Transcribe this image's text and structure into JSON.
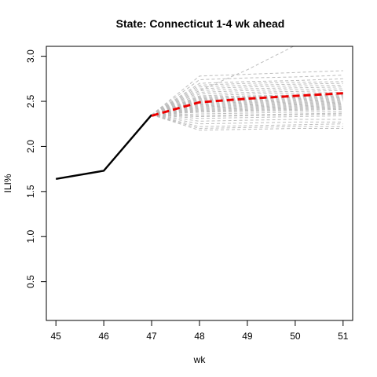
{
  "chart_data": {
    "type": "line",
    "title": "State: Connecticut 1-4 wk ahead",
    "xlabel": "wk",
    "ylabel": "ILI%",
    "xlim": [
      44.8,
      51.2
    ],
    "ylim": [
      0.07,
      3.11
    ],
    "xticks": [
      45,
      46,
      47,
      48,
      49,
      50,
      51
    ],
    "yticks": [
      0.5,
      1.0,
      1.5,
      2.0,
      2.5,
      3.0
    ],
    "ytick_labels": [
      "0.5",
      "1.0",
      "1.5",
      "2.0",
      "2.5",
      "3.0"
    ],
    "grid": false,
    "legend": "none",
    "colors": {
      "observed": "#000000",
      "forecast_mean": "#ee0000",
      "ensemble": "#bdbdbd"
    },
    "observed": {
      "x": [
        45,
        46,
        47
      ],
      "y": [
        1.64,
        1.73,
        2.35
      ]
    },
    "forecast_mean": {
      "x": [
        47,
        48,
        49,
        50,
        51
      ],
      "y": [
        2.34,
        2.49,
        2.53,
        2.56,
        2.59
      ]
    },
    "ensemble_x": [
      47,
      48,
      49,
      50,
      51
    ],
    "ensemble": [
      [
        2.35,
        2.62,
        2.85,
        3.12,
        3.3
      ],
      [
        2.35,
        2.78,
        2.8,
        2.82,
        2.84
      ],
      [
        2.35,
        2.74,
        2.76,
        2.77,
        2.79
      ],
      [
        2.35,
        2.7,
        2.72,
        2.73,
        2.75
      ],
      [
        2.35,
        2.68,
        2.7,
        2.71,
        2.72
      ],
      [
        2.35,
        2.66,
        2.68,
        2.69,
        2.7
      ],
      [
        2.35,
        2.64,
        2.66,
        2.67,
        2.68
      ],
      [
        2.35,
        2.62,
        2.64,
        2.65,
        2.66
      ],
      [
        2.35,
        2.6,
        2.62,
        2.63,
        2.64
      ],
      [
        2.35,
        2.58,
        2.6,
        2.61,
        2.62
      ],
      [
        2.35,
        2.56,
        2.58,
        2.59,
        2.6
      ],
      [
        2.35,
        2.55,
        2.56,
        2.57,
        2.58
      ],
      [
        2.35,
        2.54,
        2.55,
        2.56,
        2.57
      ],
      [
        2.35,
        2.53,
        2.54,
        2.55,
        2.56
      ],
      [
        2.35,
        2.52,
        2.53,
        2.54,
        2.55
      ],
      [
        2.35,
        2.51,
        2.52,
        2.53,
        2.54
      ],
      [
        2.35,
        2.5,
        2.51,
        2.52,
        2.53
      ],
      [
        2.35,
        2.49,
        2.5,
        2.51,
        2.52
      ],
      [
        2.35,
        2.48,
        2.49,
        2.5,
        2.51
      ],
      [
        2.35,
        2.47,
        2.48,
        2.49,
        2.5
      ],
      [
        2.35,
        2.46,
        2.47,
        2.48,
        2.49
      ],
      [
        2.35,
        2.45,
        2.46,
        2.47,
        2.48
      ],
      [
        2.35,
        2.44,
        2.45,
        2.46,
        2.47
      ],
      [
        2.35,
        2.43,
        2.44,
        2.45,
        2.46
      ],
      [
        2.35,
        2.42,
        2.43,
        2.44,
        2.45
      ],
      [
        2.35,
        2.41,
        2.42,
        2.43,
        2.44
      ],
      [
        2.35,
        2.4,
        2.41,
        2.42,
        2.43
      ],
      [
        2.35,
        2.39,
        2.4,
        2.41,
        2.42
      ],
      [
        2.35,
        2.38,
        2.39,
        2.4,
        2.41
      ],
      [
        2.35,
        2.36,
        2.37,
        2.38,
        2.39
      ],
      [
        2.35,
        2.34,
        2.35,
        2.36,
        2.37
      ],
      [
        2.35,
        2.33,
        2.34,
        2.35,
        2.36
      ],
      [
        2.35,
        2.31,
        2.32,
        2.33,
        2.34
      ],
      [
        2.35,
        2.28,
        2.29,
        2.3,
        2.3
      ],
      [
        2.35,
        2.25,
        2.26,
        2.27,
        2.27
      ],
      [
        2.35,
        2.22,
        2.23,
        2.24,
        2.25
      ],
      [
        2.35,
        2.2,
        2.21,
        2.22,
        2.22
      ],
      [
        2.35,
        2.18,
        2.19,
        2.2,
        2.2
      ]
    ]
  }
}
